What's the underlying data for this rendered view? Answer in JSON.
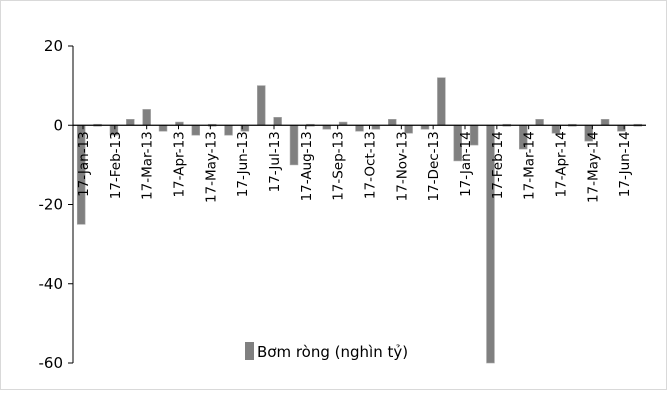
{
  "chart_data": {
    "type": "bar",
    "title": "",
    "xlabel": "",
    "ylabel": "",
    "ylim": [
      -60,
      20
    ],
    "yticks": [
      20,
      0,
      -20,
      -40,
      -60
    ],
    "grid": false,
    "legend_position": "bottom-center",
    "bar_color": "#808080",
    "axis_color": "#000000",
    "legend_label": "Bơm ròng (nghìn tỷ)",
    "x_tick_labels": [
      "17-Jan-13",
      "17-Feb-13",
      "17-Mar-13",
      "17-Apr-13",
      "17-May-13",
      "17-Jun-13",
      "17-Jul-13",
      "17-Aug-13",
      "17-Sep-13",
      "17-Oct-13",
      "17-Nov-13",
      "17-Dec-13",
      "17-Jan-14",
      "17-Feb-14",
      "17-Mar-14",
      "17-Apr-14",
      "17-May-14",
      "17-Jun-14"
    ],
    "values": [
      -25,
      -0.5,
      -2.5,
      1.5,
      4,
      -1.5,
      0.8,
      -2.5,
      0.5,
      -2.5,
      -1.5,
      10,
      2,
      -10,
      -0.5,
      -1,
      0.8,
      -1.5,
      -1,
      1.5,
      -2,
      -1,
      12,
      -9,
      -5,
      -60,
      -0.5,
      -6,
      1.5,
      -2,
      -0.5,
      -4,
      1.5,
      -1.5,
      -0.5
    ]
  }
}
